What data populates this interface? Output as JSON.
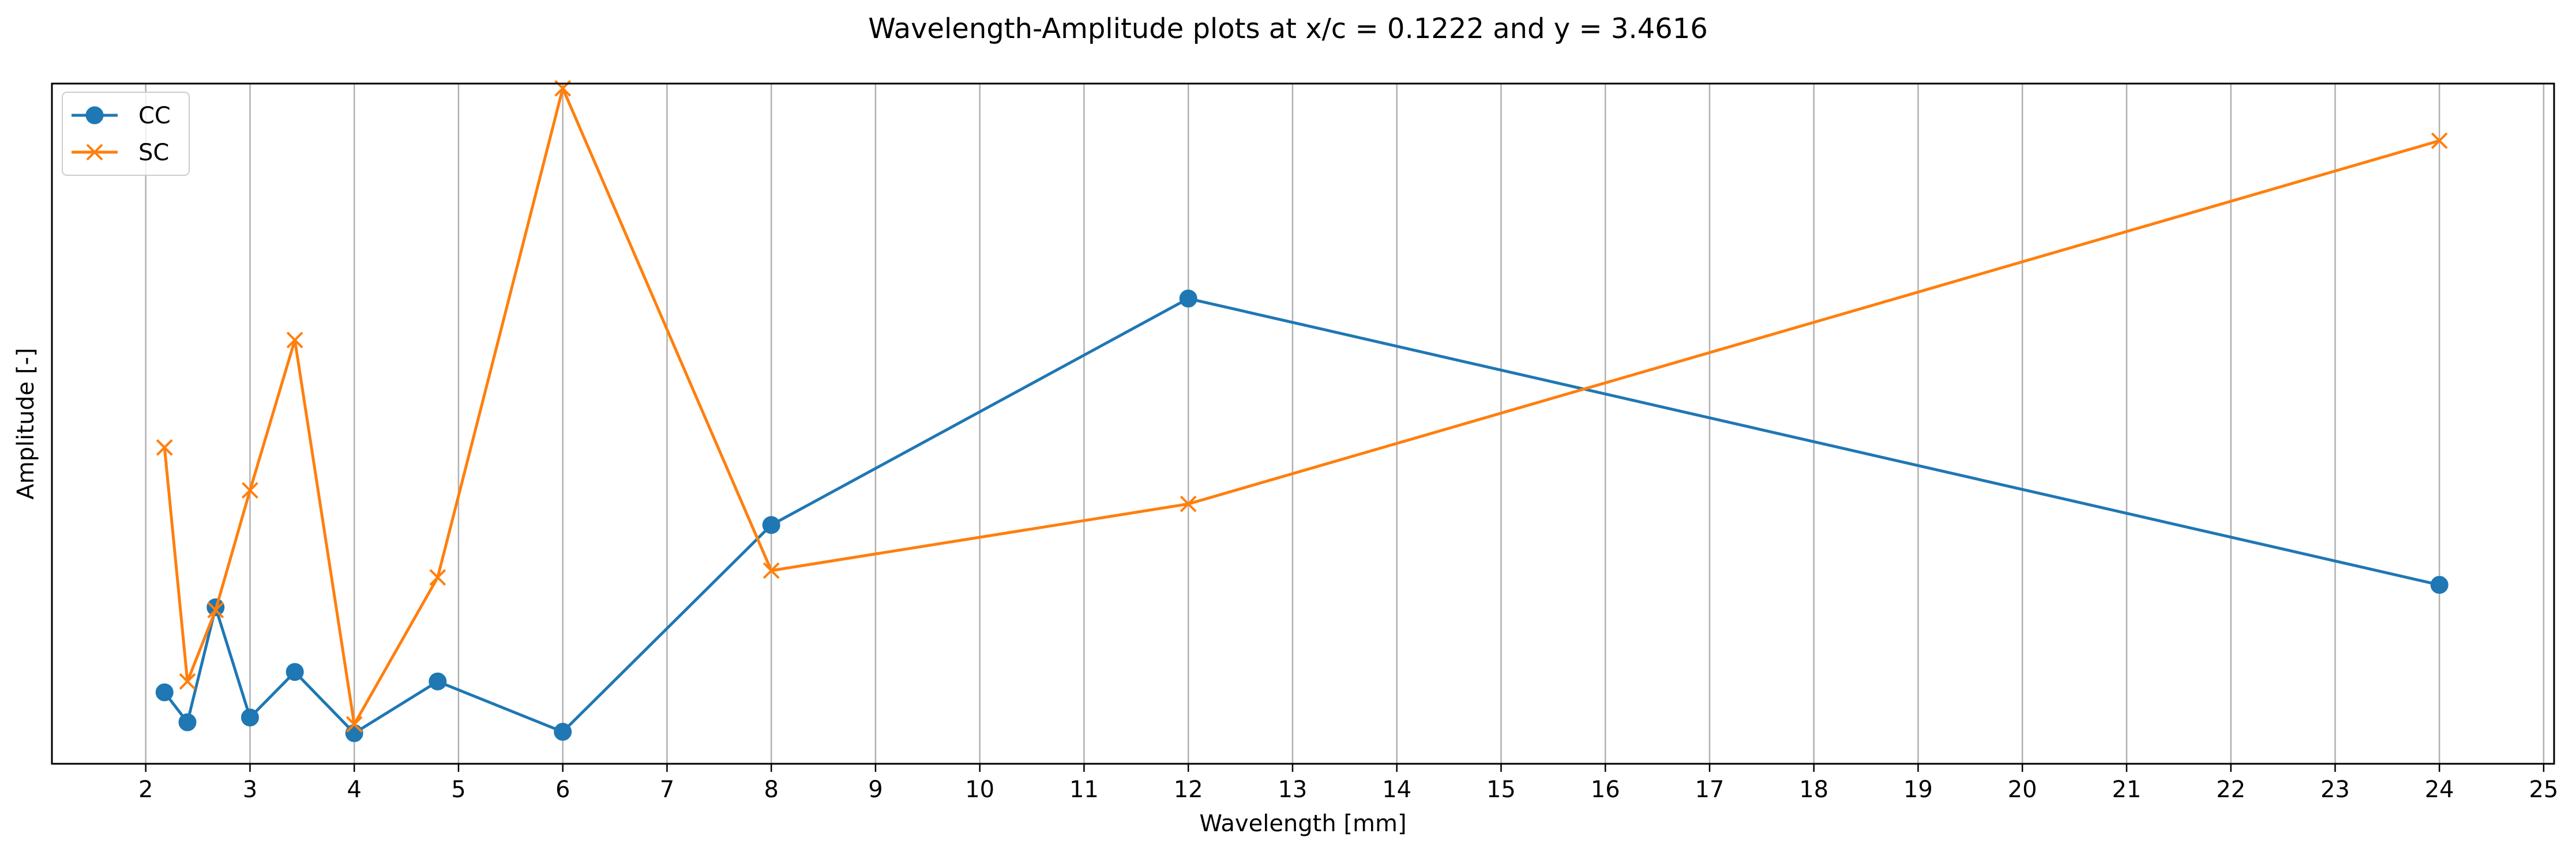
{
  "chart_data": {
    "type": "line",
    "title": "Wavelength-Amplitude plots at x/c = 0.1222 and y = 3.4616",
    "xlabel": "Wavelength [mm]",
    "ylabel": "Amplitude [-]",
    "xlim": [
      1.1,
      25.1
    ],
    "ylim": [
      0,
      1
    ],
    "xticks": [
      "2",
      "3",
      "4",
      "5",
      "6",
      "7",
      "8",
      "9",
      "10",
      "11",
      "12",
      "13",
      "14",
      "15",
      "16",
      "17",
      "18",
      "19",
      "20",
      "21",
      "22",
      "23",
      "24",
      "25"
    ],
    "grid": "vertical",
    "yticks_shown": false,
    "legend_position": "top-left",
    "series": [
      {
        "name": "CC",
        "color": "#1f77b4",
        "marker": "circle",
        "x": [
          2.18,
          2.4,
          2.67,
          3.0,
          3.43,
          4.0,
          4.8,
          6.0,
          8.0,
          12.0,
          24.0
        ],
        "y": [
          0.105,
          0.061,
          0.23,
          0.068,
          0.135,
          0.045,
          0.121,
          0.047,
          0.351,
          0.684,
          0.263
        ]
      },
      {
        "name": "SC",
        "color": "#ff7f0e",
        "marker": "x",
        "x": [
          2.18,
          2.4,
          2.67,
          3.0,
          3.43,
          4.0,
          4.8,
          6.0,
          8.0,
          12.0,
          24.0
        ],
        "y": [
          0.465,
          0.121,
          0.226,
          0.402,
          0.623,
          0.058,
          0.274,
          0.993,
          0.284,
          0.382,
          0.916
        ]
      }
    ]
  }
}
